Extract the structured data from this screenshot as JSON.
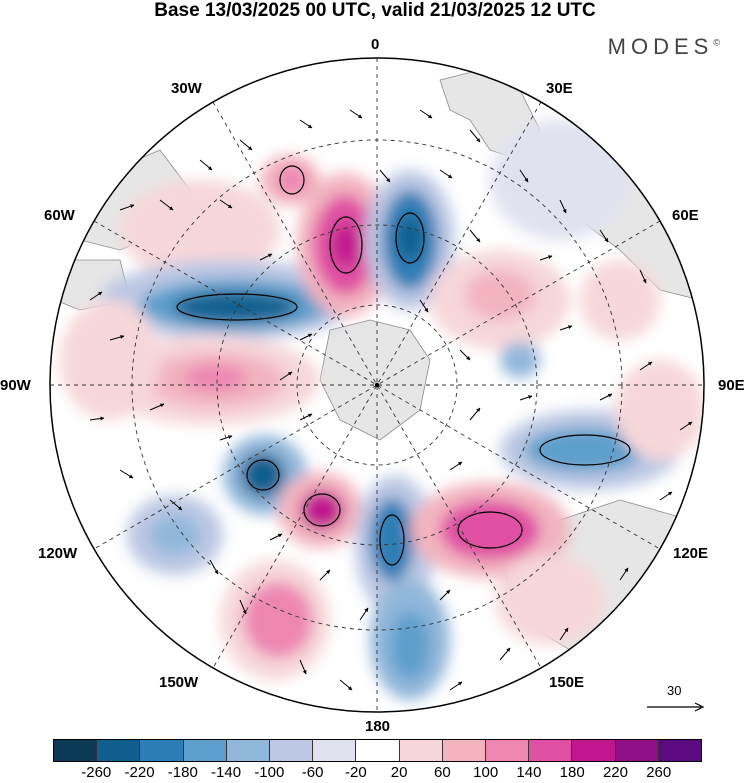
{
  "title": "Base 13/03/2025 00 UTC, valid 21/03/2025 12 UTC",
  "brand": "MODES",
  "brand_mark": "©",
  "longitude_labels": {
    "top": "0",
    "right": "90E",
    "bottom": "180",
    "left": "90W",
    "lon_30w": "30W",
    "lon_30e": "30E",
    "lon_60w": "60W",
    "lon_60e": "60E",
    "lon_120w": "120W",
    "lon_120e": "120E",
    "lon_150w": "150W",
    "lon_150e": "150E"
  },
  "reference_vector": {
    "label": "30"
  },
  "projection": "south-polar-stereographic",
  "colorbar": {
    "colors": [
      "#0b3a57",
      "#0f5e8e",
      "#2d7eb6",
      "#5d9fcc",
      "#91b7db",
      "#bcc8e4",
      "#e1e2f0",
      "#ffffff",
      "#f7d7da",
      "#f3b4c0",
      "#ed87b2",
      "#df4fa3",
      "#c0178e",
      "#8f0f86",
      "#5b0b7f"
    ],
    "ticks": [
      "-260",
      "-220",
      "-180",
      "-140",
      "-100",
      "-60",
      "-20",
      "20",
      "60",
      "100",
      "140",
      "180",
      "220",
      "260"
    ]
  }
}
